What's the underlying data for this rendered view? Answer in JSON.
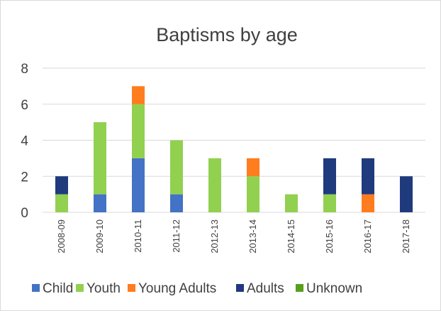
{
  "chart_data": {
    "type": "bar",
    "stacked": true,
    "title": "Baptisms by age",
    "xlabel": "",
    "ylabel": "",
    "ylim": [
      0,
      8
    ],
    "yticks": [
      0,
      2,
      4,
      6,
      8
    ],
    "grid": true,
    "legend_position": "bottom",
    "categories": [
      "2008-09",
      "2009-10",
      "2010-11",
      "2011-12",
      "2012-13",
      "2013-14",
      "2014-15",
      "2015-16",
      "2016-17",
      "2017-18"
    ],
    "series": [
      {
        "name": "Child",
        "color": "#4472c4",
        "values": [
          0,
          1,
          3,
          1,
          0,
          0,
          0,
          0,
          0,
          0
        ]
      },
      {
        "name": "Youth",
        "color": "#92d050",
        "values": [
          1,
          4,
          3,
          3,
          3,
          2,
          1,
          1,
          0,
          0
        ]
      },
      {
        "name": "Young Adults",
        "color": "#ff7c1f",
        "values": [
          0,
          0,
          1,
          0,
          0,
          1,
          0,
          0,
          1,
          0
        ]
      },
      {
        "name": "Adults",
        "color": "#203a7e",
        "values": [
          1,
          0,
          0,
          0,
          0,
          0,
          0,
          2,
          2,
          2
        ]
      },
      {
        "name": "Unknown",
        "color": "#5a9e1e",
        "values": [
          0,
          0,
          0,
          0,
          0,
          0,
          0,
          0,
          0,
          0
        ]
      }
    ]
  }
}
